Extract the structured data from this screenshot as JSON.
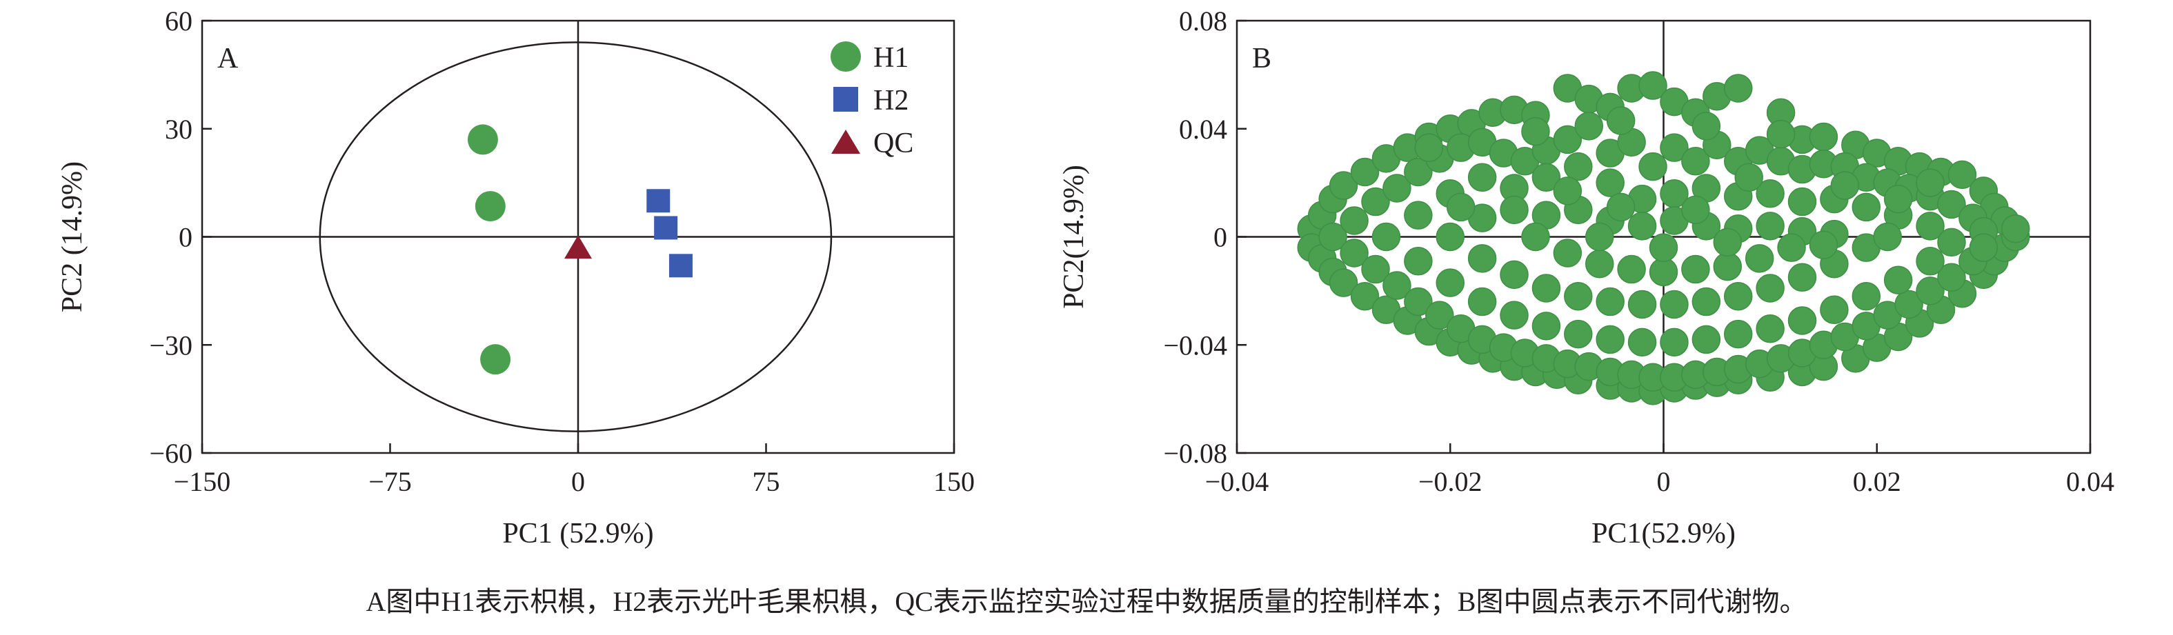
{
  "caption": "A图中H1表示枳椇，H2表示光叶毛果枳椇，QC表示监控实验过程中数据质量的控制样本；B图中圆点表示不同代谢物。",
  "colors": {
    "H1": "#4aa04f",
    "H2": "#3a5bb0",
    "QC": "#8e1b2e",
    "metabolite": "#4aa04f",
    "axis": "#231f20"
  },
  "chart_data": [
    {
      "type": "scatter",
      "panel_label": "A",
      "xlabel": "PC1 (52.9%)",
      "ylabel": "PC2 (14.9%)",
      "xlim": [
        -150,
        150
      ],
      "ylim": [
        -60,
        60
      ],
      "xticks": [
        -150,
        -75,
        0,
        75,
        150
      ],
      "xtick_labels": [
        "−150",
        "−75",
        "0",
        "75",
        "150"
      ],
      "yticks": [
        60,
        30,
        0,
        -30,
        -60
      ],
      "ytick_labels": [
        "60",
        "30",
        "0",
        "−30",
        "−60"
      ],
      "legend_position": "top-right",
      "ellipse": {
        "center": [
          -1,
          0
        ],
        "radius_x": 102,
        "radius_y": 54
      },
      "series": [
        {
          "name": "H1",
          "marker": "circle",
          "points": [
            [
              -38,
              27
            ],
            [
              -35,
              8.5
            ],
            [
              -33,
              -34
            ]
          ]
        },
        {
          "name": "H2",
          "marker": "square",
          "points": [
            [
              32,
              10
            ],
            [
              35,
              2.5
            ],
            [
              41,
              -8
            ]
          ]
        },
        {
          "name": "QC",
          "marker": "triangle",
          "points": [
            [
              0,
              -3
            ]
          ]
        }
      ]
    },
    {
      "type": "scatter",
      "panel_label": "B",
      "xlabel": "PC1(52.9%)",
      "ylabel": "PC2(14.9%)",
      "xlim": [
        -0.04,
        0.04
      ],
      "ylim": [
        -0.08,
        0.08
      ],
      "xticks": [
        -0.04,
        -0.02,
        0,
        0.02,
        0.04
      ],
      "xtick_labels": [
        "−0.04",
        "−0.02",
        "0",
        "0.02",
        "0.04"
      ],
      "yticks": [
        0.08,
        0.04,
        0,
        -0.04,
        -0.08
      ],
      "ytick_labels": [
        "0.08",
        "0.04",
        "0",
        "−0.04",
        "−0.08"
      ],
      "series": [
        {
          "marker": "circle",
          "points": [
            [
              -0.033,
              0.003
            ],
            [
              -0.033,
              -0.004
            ],
            [
              -0.032,
              0.008
            ],
            [
              -0.032,
              -0.008
            ],
            [
              -0.031,
              0.014
            ],
            [
              -0.031,
              -0.013
            ],
            [
              -0.03,
              0.019
            ],
            [
              -0.03,
              -0.017
            ],
            [
              -0.028,
              0.024
            ],
            [
              -0.028,
              -0.022
            ],
            [
              -0.026,
              0.029
            ],
            [
              -0.026,
              -0.027
            ],
            [
              -0.024,
              0.033
            ],
            [
              -0.024,
              -0.031
            ],
            [
              -0.022,
              0.037
            ],
            [
              -0.022,
              -0.035
            ],
            [
              -0.02,
              0.04
            ],
            [
              -0.02,
              -0.039
            ],
            [
              -0.018,
              0.042
            ],
            [
              -0.018,
              -0.042
            ],
            [
              -0.016,
              0.046
            ],
            [
              -0.016,
              -0.045
            ],
            [
              -0.014,
              0.047
            ],
            [
              -0.014,
              -0.048
            ],
            [
              -0.012,
              0.045
            ],
            [
              -0.012,
              -0.05
            ],
            [
              -0.009,
              0.055
            ],
            [
              -0.01,
              -0.051
            ],
            [
              -0.007,
              0.051
            ],
            [
              -0.008,
              -0.053
            ],
            [
              -0.005,
              0.048
            ],
            [
              -0.005,
              -0.055
            ],
            [
              -0.003,
              0.055
            ],
            [
              -0.003,
              -0.056
            ],
            [
              -0.001,
              0.056
            ],
            [
              -0.001,
              -0.057
            ],
            [
              0.001,
              0.05
            ],
            [
              0.001,
              -0.056
            ],
            [
              0.003,
              0.046
            ],
            [
              0.003,
              -0.055
            ],
            [
              0.005,
              0.052
            ],
            [
              0.005,
              -0.054
            ],
            [
              0.007,
              0.055
            ],
            [
              0.007,
              -0.053
            ],
            [
              0.011,
              0.046
            ],
            [
              0.01,
              -0.052
            ],
            [
              0.013,
              0.036
            ],
            [
              0.013,
              -0.05
            ],
            [
              0.015,
              0.037
            ],
            [
              0.015,
              -0.048
            ],
            [
              0.018,
              0.034
            ],
            [
              0.018,
              -0.045
            ],
            [
              0.02,
              0.031
            ],
            [
              0.02,
              -0.041
            ],
            [
              0.022,
              0.028
            ],
            [
              0.022,
              -0.037
            ],
            [
              0.024,
              0.026
            ],
            [
              0.024,
              -0.032
            ],
            [
              0.026,
              0.024
            ],
            [
              0.026,
              -0.027
            ],
            [
              0.028,
              0.023
            ],
            [
              0.028,
              -0.021
            ],
            [
              0.03,
              0.017
            ],
            [
              0.03,
              -0.014
            ],
            [
              0.031,
              0.011
            ],
            [
              0.031,
              -0.009
            ],
            [
              0.032,
              0.006
            ],
            [
              0.032,
              -0.004
            ],
            [
              0.033,
              0.0
            ],
            [
              0.033,
              0.003
            ],
            [
              -0.031,
              0.0
            ],
            [
              -0.029,
              0.006
            ],
            [
              -0.029,
              -0.006
            ],
            [
              -0.027,
              0.013
            ],
            [
              -0.027,
              -0.012
            ],
            [
              -0.025,
              0.018
            ],
            [
              -0.025,
              -0.018
            ],
            [
              -0.023,
              0.024
            ],
            [
              -0.023,
              -0.024
            ],
            [
              -0.021,
              0.029
            ],
            [
              -0.021,
              -0.029
            ],
            [
              -0.019,
              0.033
            ],
            [
              -0.019,
              -0.034
            ],
            [
              -0.017,
              0.035
            ],
            [
              -0.017,
              -0.038
            ],
            [
              -0.015,
              0.031
            ],
            [
              -0.015,
              -0.041
            ],
            [
              -0.013,
              0.028
            ],
            [
              -0.013,
              -0.043
            ],
            [
              -0.011,
              0.032
            ],
            [
              -0.011,
              -0.045
            ],
            [
              -0.009,
              0.036
            ],
            [
              -0.009,
              -0.047
            ],
            [
              -0.007,
              0.041
            ],
            [
              -0.007,
              -0.048
            ],
            [
              -0.005,
              0.031
            ],
            [
              -0.005,
              -0.05
            ],
            [
              -0.003,
              0.035
            ],
            [
              -0.003,
              -0.051
            ],
            [
              -0.001,
              0.026
            ],
            [
              -0.001,
              -0.052
            ],
            [
              0.001,
              0.033
            ],
            [
              0.001,
              -0.052
            ],
            [
              0.003,
              0.028
            ],
            [
              0.003,
              -0.051
            ],
            [
              0.005,
              0.034
            ],
            [
              0.005,
              -0.05
            ],
            [
              0.007,
              0.028
            ],
            [
              0.007,
              -0.049
            ],
            [
              0.009,
              0.032
            ],
            [
              0.009,
              -0.047
            ],
            [
              0.011,
              0.028
            ],
            [
              0.011,
              -0.045
            ],
            [
              0.013,
              0.025
            ],
            [
              0.013,
              -0.043
            ],
            [
              0.015,
              0.027
            ],
            [
              0.015,
              -0.04
            ],
            [
              0.017,
              0.026
            ],
            [
              0.017,
              -0.037
            ],
            [
              0.019,
              0.022
            ],
            [
              0.019,
              -0.033
            ],
            [
              0.021,
              0.02
            ],
            [
              0.021,
              -0.029
            ],
            [
              0.023,
              0.018
            ],
            [
              0.023,
              -0.025
            ],
            [
              0.025,
              0.015
            ],
            [
              0.025,
              -0.02
            ],
            [
              0.027,
              0.012
            ],
            [
              0.027,
              -0.015
            ],
            [
              0.029,
              0.007
            ],
            [
              0.029,
              -0.009
            ],
            [
              0.03,
              0.002
            ],
            [
              0.03,
              -0.004
            ],
            [
              -0.026,
              0.0
            ],
            [
              -0.023,
              0.008
            ],
            [
              -0.023,
              -0.009
            ],
            [
              -0.02,
              0.016
            ],
            [
              -0.02,
              -0.017
            ],
            [
              -0.017,
              0.022
            ],
            [
              -0.017,
              -0.024
            ],
            [
              -0.014,
              0.018
            ],
            [
              -0.014,
              -0.029
            ],
            [
              -0.011,
              0.022
            ],
            [
              -0.011,
              -0.033
            ],
            [
              -0.008,
              0.026
            ],
            [
              -0.008,
              -0.036
            ],
            [
              -0.005,
              0.02
            ],
            [
              -0.005,
              -0.038
            ],
            [
              -0.002,
              0.014
            ],
            [
              -0.002,
              -0.039
            ],
            [
              0.001,
              0.016
            ],
            [
              0.001,
              -0.039
            ],
            [
              0.004,
              0.018
            ],
            [
              0.004,
              -0.038
            ],
            [
              0.007,
              0.015
            ],
            [
              0.007,
              -0.036
            ],
            [
              0.01,
              0.016
            ],
            [
              0.01,
              -0.034
            ],
            [
              0.013,
              0.013
            ],
            [
              0.013,
              -0.031
            ],
            [
              0.016,
              0.014
            ],
            [
              0.016,
              -0.027
            ],
            [
              0.019,
              0.011
            ],
            [
              0.019,
              -0.022
            ],
            [
              0.022,
              0.008
            ],
            [
              0.022,
              -0.016
            ],
            [
              0.025,
              0.004
            ],
            [
              0.025,
              -0.009
            ],
            [
              0.027,
              -0.002
            ],
            [
              -0.02,
              0.0
            ],
            [
              -0.017,
              0.007
            ],
            [
              -0.017,
              -0.008
            ],
            [
              -0.014,
              0.01
            ],
            [
              -0.014,
              -0.014
            ],
            [
              -0.011,
              0.008
            ],
            [
              -0.011,
              -0.019
            ],
            [
              -0.008,
              0.01
            ],
            [
              -0.008,
              -0.022
            ],
            [
              -0.005,
              0.006
            ],
            [
              -0.005,
              -0.024
            ],
            [
              -0.002,
              0.004
            ],
            [
              -0.002,
              -0.025
            ],
            [
              0.001,
              0.006
            ],
            [
              0.001,
              -0.025
            ],
            [
              0.004,
              0.004
            ],
            [
              0.004,
              -0.024
            ],
            [
              0.007,
              0.003
            ],
            [
              0.007,
              -0.022
            ],
            [
              0.01,
              0.004
            ],
            [
              0.01,
              -0.019
            ],
            [
              0.013,
              0.002
            ],
            [
              0.013,
              -0.015
            ],
            [
              0.016,
              0.001
            ],
            [
              0.016,
              -0.01
            ],
            [
              0.019,
              -0.004
            ],
            [
              0.021,
              0.0
            ],
            [
              -0.012,
              0.0
            ],
            [
              -0.009,
              -0.006
            ],
            [
              -0.006,
              -0.01
            ],
            [
              -0.003,
              -0.012
            ],
            [
              0.0,
              -0.013
            ],
            [
              0.003,
              -0.012
            ],
            [
              0.006,
              -0.011
            ],
            [
              0.009,
              -0.008
            ],
            [
              0.012,
              -0.004
            ],
            [
              0.015,
              -0.003
            ],
            [
              -0.006,
              0.0
            ],
            [
              0.0,
              -0.004
            ],
            [
              0.006,
              -0.002
            ],
            [
              0.003,
              0.01
            ],
            [
              -0.004,
              0.011
            ],
            [
              0.008,
              0.022
            ],
            [
              -0.009,
              0.017
            ],
            [
              0.017,
              0.019
            ],
            [
              -0.019,
              0.011
            ],
            [
              0.022,
              0.014
            ],
            [
              -0.012,
              0.039
            ],
            [
              0.011,
              0.038
            ],
            [
              -0.022,
              0.033
            ],
            [
              0.025,
              0.02
            ],
            [
              0.004,
              0.041
            ],
            [
              -0.004,
              0.043
            ]
          ]
        }
      ]
    }
  ]
}
